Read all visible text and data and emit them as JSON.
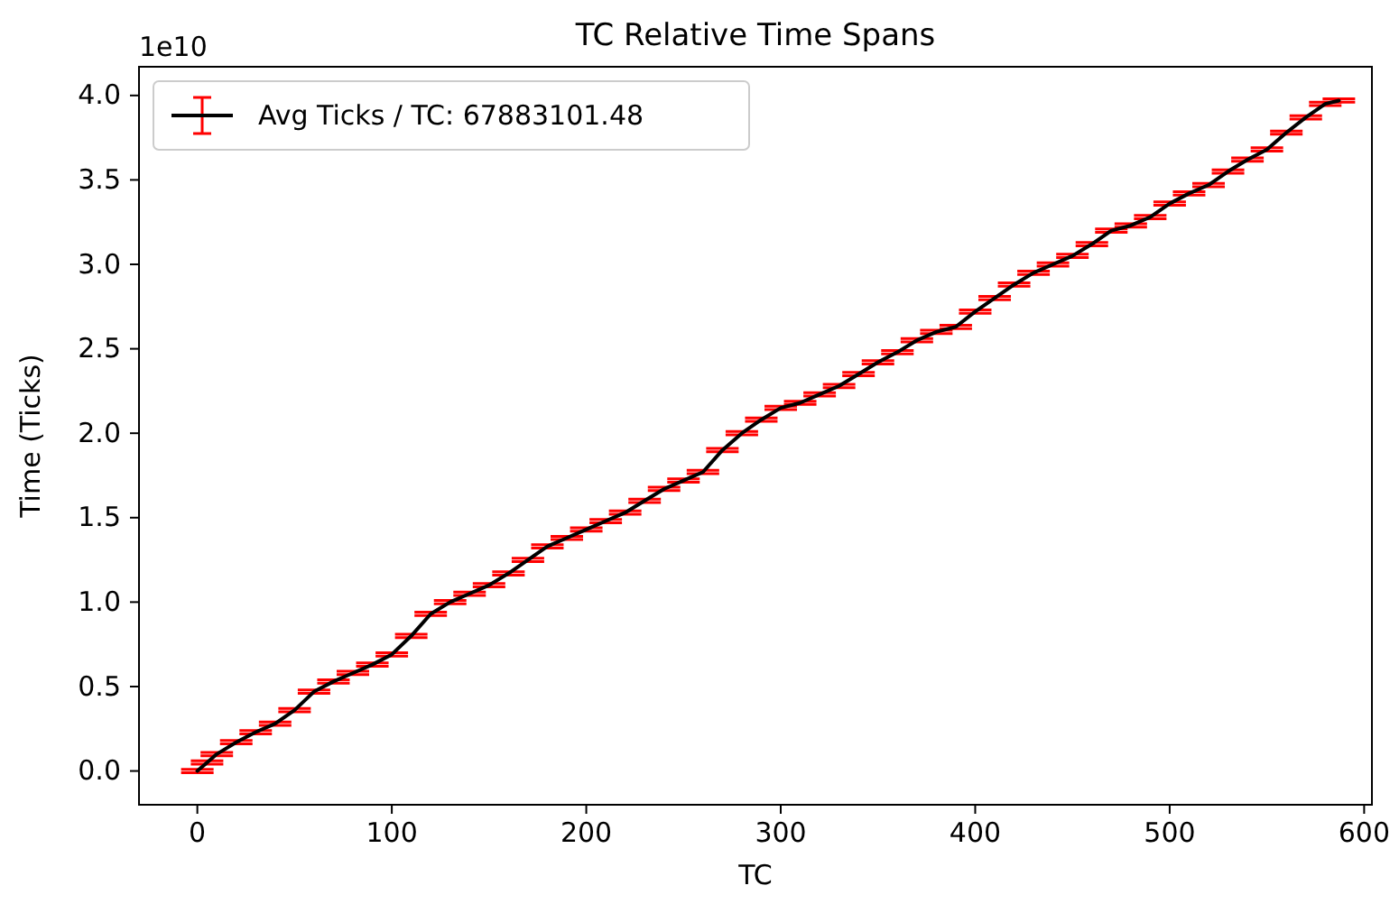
{
  "chart_data": {
    "type": "line",
    "title": "TC Relative Time Spans",
    "xlabel": "TC",
    "ylabel": "Time (Ticks)",
    "annotations": [
      "1e10"
    ],
    "xlim": [
      -30,
      604
    ],
    "xticks": [
      0,
      100,
      200,
      300,
      400,
      500,
      600
    ],
    "ylim": [
      -0.2,
      4.17
    ],
    "yticks": [
      {
        "value": 0,
        "label": "0.0"
      },
      0.5,
      {
        "value": 1,
        "label": "1.0"
      },
      1.5,
      {
        "value": 2,
        "label": "2.0"
      },
      2.5,
      {
        "value": 3,
        "label": "3.0"
      },
      3.5,
      {
        "value": 4,
        "label": "4.0"
      }
    ],
    "grid": false,
    "legend": "top left",
    "marker": "none",
    "line_style": "solid",
    "series": [
      {
        "name": "Avg Ticks / TC: 67883101.48",
        "color": "#000000",
        "x": [
          0,
          5,
          10,
          20,
          30,
          40,
          50,
          60,
          70,
          80,
          90,
          100,
          110,
          120,
          130,
          140,
          150,
          160,
          170,
          180,
          190,
          200,
          210,
          220,
          230,
          240,
          250,
          260,
          270,
          280,
          290,
          300,
          310,
          320,
          330,
          340,
          350,
          360,
          370,
          380,
          390,
          400,
          410,
          420,
          430,
          440,
          450,
          460,
          470,
          480,
          490,
          500,
          510,
          520,
          530,
          540,
          550,
          560,
          570,
          580,
          587
        ],
        "values": [
          0,
          0.05,
          0.1,
          0.17,
          0.23,
          0.28,
          0.36,
          0.47,
          0.53,
          0.58,
          0.63,
          0.69,
          0.8,
          0.93,
          1,
          1.05,
          1.1,
          1.17,
          1.25,
          1.33,
          1.38,
          1.43,
          1.48,
          1.53,
          1.6,
          1.67,
          1.72,
          1.77,
          1.9,
          2,
          2.08,
          2.15,
          2.18,
          2.23,
          2.28,
          2.35,
          2.42,
          2.48,
          2.55,
          2.6,
          2.63,
          2.72,
          2.8,
          2.88,
          2.95,
          3,
          3.05,
          3.12,
          3.2,
          3.23,
          3.28,
          3.36,
          3.42,
          3.47,
          3.55,
          3.62,
          3.68,
          3.78,
          3.87,
          3.95,
          3.97
        ],
        "errors": [
          0.01,
          0.01,
          0.01,
          0.01,
          0.01,
          0.01,
          0.01,
          0.01,
          0.01,
          0.01,
          0.01,
          0.01,
          0.01,
          0.01,
          0.01,
          0.01,
          0.01,
          0.01,
          0.01,
          0.01,
          0.01,
          0.01,
          0.01,
          0.01,
          0.01,
          0.01,
          0.01,
          0.01,
          0.01,
          0.01,
          0.01,
          0.01,
          0.01,
          0.01,
          0.01,
          0.01,
          0.01,
          0.01,
          0.01,
          0.01,
          0.01,
          0.01,
          0.01,
          0.01,
          0.01,
          0.01,
          0.01,
          0.01,
          0.01,
          0.01,
          0.01,
          0.01,
          0.01,
          0.01,
          0.01,
          0.01,
          0.01,
          0.01,
          0.01,
          0.01,
          0.01
        ],
        "colors": [
          "#ff0000",
          "#ff0000",
          "#ff0000",
          "#ff0000",
          "#ff0000",
          "#ff0000",
          "#ff0000",
          "#ff0000",
          "#ff0000",
          "#ff0000",
          "#ff0000",
          "#ff0000",
          "#ff0000",
          "#ff0000",
          "#ff0000",
          "#ff0000",
          "#ff0000",
          "#ff0000",
          "#ff0000",
          "#ff0000",
          "#ff0000",
          "#ff0000",
          "#ff0000",
          "#ff0000",
          "#ff0000",
          "#ff0000",
          "#ff0000",
          "#ff0000",
          "#ff0000",
          "#ff0000",
          "#ff0000",
          "#ff0000",
          "#ff0000",
          "#ff0000",
          "#ff0000",
          "#ff0000",
          "#ff0000",
          "#ff0000",
          "#ff0000",
          "#ff0000",
          "#ff0000",
          "#ff0000",
          "#ff0000",
          "#ff0000",
          "#ff0000",
          "#ff0000",
          "#ff0000",
          "#ff0000",
          "#ff0000",
          "#ff0000",
          "#ff0000",
          "#ff0000",
          "#ff0000",
          "#ff0000",
          "#ff0000",
          "#ff0000",
          "#ff0000",
          "#ff0000",
          "#ff0000",
          "#ff0000",
          "#ff0000"
        ]
      }
    ]
  }
}
